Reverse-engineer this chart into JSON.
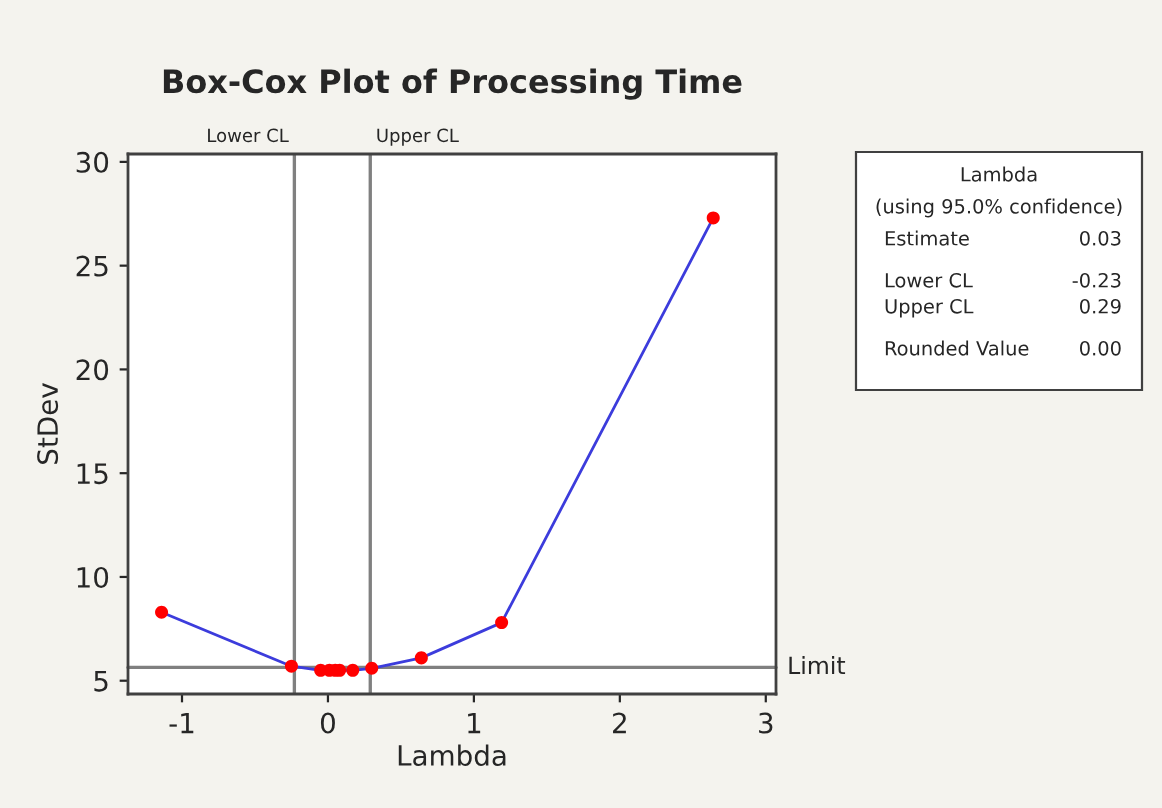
{
  "chart_data": {
    "type": "line",
    "title": "Box-Cox Plot of Processing Time",
    "xlabel": "Lambda",
    "ylabel": "StDev",
    "x": [
      -1.14,
      -0.25,
      -0.05,
      0.01,
      0.05,
      0.08,
      0.17,
      0.3,
      0.64,
      1.19,
      2.64
    ],
    "series": [
      {
        "color": "#3c3cdc",
        "colors": [
          "#ff0000",
          "#ff0000",
          "#ff0000",
          "#ff0000",
          "#ff0000",
          "#ff0000",
          "#ff0000",
          "#ff0000",
          "#ff0000",
          "#ff0000",
          "#ff0000"
        ],
        "values": [
          8.3,
          5.7,
          5.5,
          5.5,
          5.5,
          5.5,
          5.5,
          5.6,
          6.1,
          7.8,
          27.3
        ]
      }
    ],
    "xlim": [
      -1.37,
      3.07
    ],
    "ylim": [
      4.36,
      30.38
    ],
    "xticks": [
      -1,
      0,
      1,
      2,
      3
    ],
    "yticks": [
      5,
      10,
      15,
      20,
      25,
      30
    ],
    "marker": "circle",
    "line_style": "solid",
    "grid": false,
    "legend": false,
    "ref_lines": [
      {
        "axis": "x",
        "value": -0.23,
        "label": "Lower CL",
        "color": "#808080"
      },
      {
        "axis": "x",
        "value": 0.29,
        "label": "Upper CL",
        "color": "#808080"
      },
      {
        "axis": "y",
        "value": 5.64,
        "label": "Limit",
        "color": "#808080"
      }
    ],
    "annotations": [
      "Lambda",
      "(using 95.0% confidence)",
      "Estimate",
      "0.03",
      "Lower CL",
      "-0.23",
      "Upper CL",
      "0.29",
      "Rounded Value",
      "0.00"
    ]
  }
}
